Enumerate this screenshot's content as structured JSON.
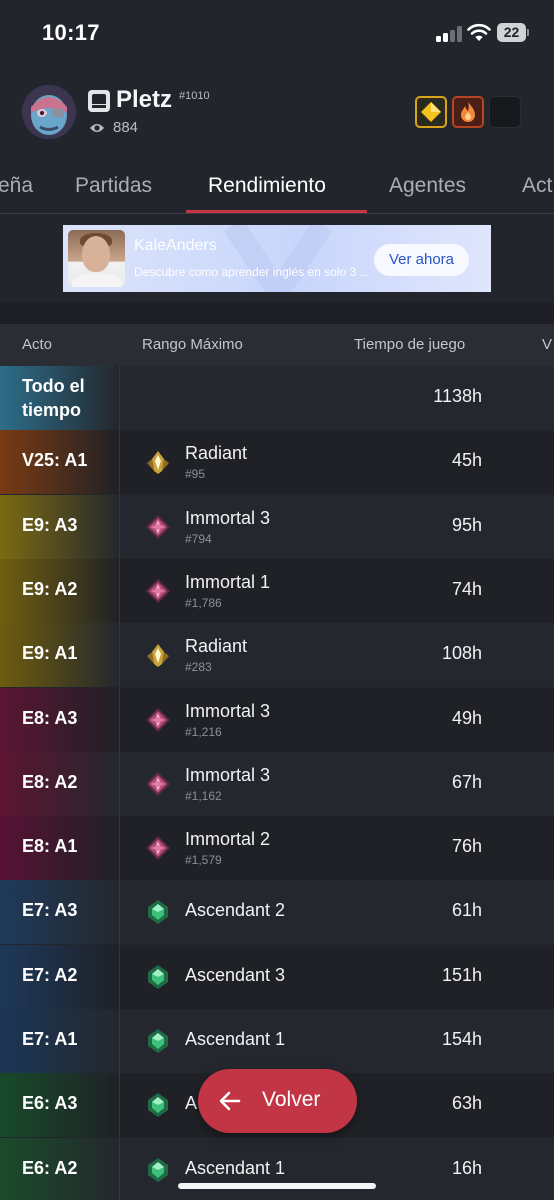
{
  "status_bar": {
    "time": "10:17",
    "battery": "22"
  },
  "profile": {
    "name": "Pletz",
    "tag": "#1010",
    "views": "884",
    "icons": [
      "avatar-portrait",
      "riot-fist-icon",
      "eye-icon",
      "gold-diamond-badge",
      "fire-badge",
      "dark-badge"
    ]
  },
  "tabs": [
    {
      "label": "eña",
      "active": false
    },
    {
      "label": "Partidas",
      "active": false
    },
    {
      "label": "Rendimiento",
      "active": true
    },
    {
      "label": "Agentes",
      "active": false
    },
    {
      "label": "Act",
      "active": false
    }
  ],
  "ad": {
    "title": "KaleAnders",
    "description": "Descubre como aprender inglés en solo 3 ...",
    "cta": "Ver ahora"
  },
  "table": {
    "headers": {
      "act": "Acto",
      "rank": "Rango Máximo",
      "time": "Tiempo de juego",
      "extra": "V"
    },
    "rows": [
      {
        "act": "Todo el tiempo",
        "act_line1": "Todo el",
        "act_line2": "tiempo",
        "rank": "",
        "rank_pos": "",
        "time": "1138h",
        "tier": "none",
        "color": "#2c6d89"
      },
      {
        "act": "V25: A1",
        "rank": "Radiant",
        "rank_pos": "#95",
        "time": "45h",
        "tier": "radiant",
        "color": "#7a3a12"
      },
      {
        "act": "E9: A3",
        "rank": "Immortal 3",
        "rank_pos": "#794",
        "time": "95h",
        "tier": "immortal",
        "color": "#7b6a12"
      },
      {
        "act": "E9: A2",
        "rank": "Immortal 1",
        "rank_pos": "#1,786",
        "time": "74h",
        "tier": "immortal",
        "color": "#6f5e10"
      },
      {
        "act": "E9: A1",
        "rank": "Radiant",
        "rank_pos": "#283",
        "time": "108h",
        "tier": "radiant",
        "color": "#6d5c0f"
      },
      {
        "act": "E8: A3",
        "rank": "Immortal 3",
        "rank_pos": "#1,216",
        "time": "49h",
        "tier": "immortal",
        "color": "#5a1533"
      },
      {
        "act": "E8: A2",
        "rank": "Immortal 3",
        "rank_pos": "#1,162",
        "time": "67h",
        "tier": "immortal",
        "color": "#5c1532"
      },
      {
        "act": "E8: A1",
        "rank": "Immortal 2",
        "rank_pos": "#1,579",
        "time": "76h",
        "tier": "immortal",
        "color": "#561234"
      },
      {
        "act": "E7: A3",
        "rank": "Ascendant 2",
        "rank_pos": "",
        "time": "61h",
        "tier": "ascendant",
        "color": "#1f3a5a"
      },
      {
        "act": "E7: A2",
        "rank": "Ascendant 3",
        "rank_pos": "",
        "time": "151h",
        "tier": "ascendant",
        "color": "#1e385a"
      },
      {
        "act": "E7: A1",
        "rank": "Ascendant 1",
        "rank_pos": "",
        "time": "154h",
        "tier": "ascendant",
        "color": "#1c3656"
      },
      {
        "act": "E6: A3",
        "rank": "A",
        "rank_pos": "",
        "time": "63h",
        "tier": "ascendant",
        "color": "#184a2a"
      },
      {
        "act": "E6: A2",
        "rank": "Ascendant 1",
        "rank_pos": "",
        "time": "16h",
        "tier": "ascendant",
        "color": "#1a4b2a"
      }
    ]
  },
  "fab": {
    "label": "Volver",
    "icon": "arrow-left-icon"
  }
}
